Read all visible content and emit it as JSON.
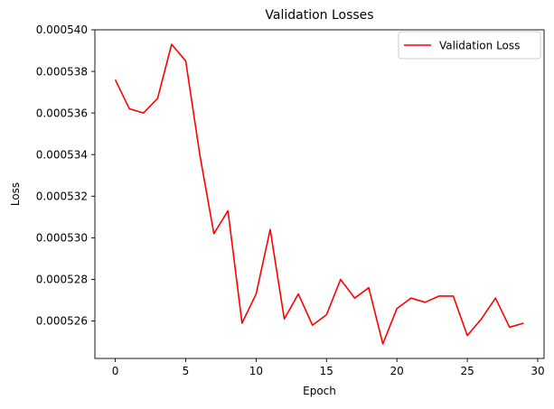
{
  "chart_data": {
    "type": "line",
    "title": "Validation Losses",
    "xlabel": "Epoch",
    "ylabel": "Loss",
    "xlim": [
      -1.45,
      30.45
    ],
    "ylim": [
      0.0005242,
      0.00054
    ],
    "xticks": [
      0,
      5,
      10,
      15,
      20,
      25,
      30
    ],
    "xtick_labels": [
      "0",
      "5",
      "10",
      "15",
      "20",
      "25",
      "30"
    ],
    "yticks": [
      0.000526,
      0.000528,
      0.00053,
      0.000532,
      0.000534,
      0.000536,
      0.000538,
      0.00054
    ],
    "ytick_labels": [
      "0.000526",
      "0.000528",
      "0.000530",
      "0.000532",
      "0.000534",
      "0.000536",
      "0.000538",
      "0.000540"
    ],
    "grid": false,
    "legend_position": "top-right",
    "series": [
      {
        "name": "Validation Loss",
        "color": "#ff0000",
        "x": [
          0,
          1,
          2,
          3,
          4,
          5,
          6,
          7,
          8,
          9,
          10,
          11,
          12,
          13,
          14,
          15,
          16,
          17,
          18,
          19,
          20,
          21,
          22,
          23,
          24,
          25,
          26,
          27,
          28,
          29
        ],
        "values": [
          0.0005376,
          0.0005362,
          0.000536,
          0.0005367,
          0.0005393,
          0.0005385,
          0.000534,
          0.0005302,
          0.0005313,
          0.0005259,
          0.0005273,
          0.0005304,
          0.0005261,
          0.0005273,
          0.0005258,
          0.0005263,
          0.000528,
          0.0005271,
          0.0005276,
          0.0005249,
          0.0005266,
          0.0005271,
          0.0005269,
          0.0005272,
          0.0005272,
          0.0005253,
          0.0005261,
          0.0005271,
          0.0005257,
          0.0005259
        ]
      }
    ]
  }
}
